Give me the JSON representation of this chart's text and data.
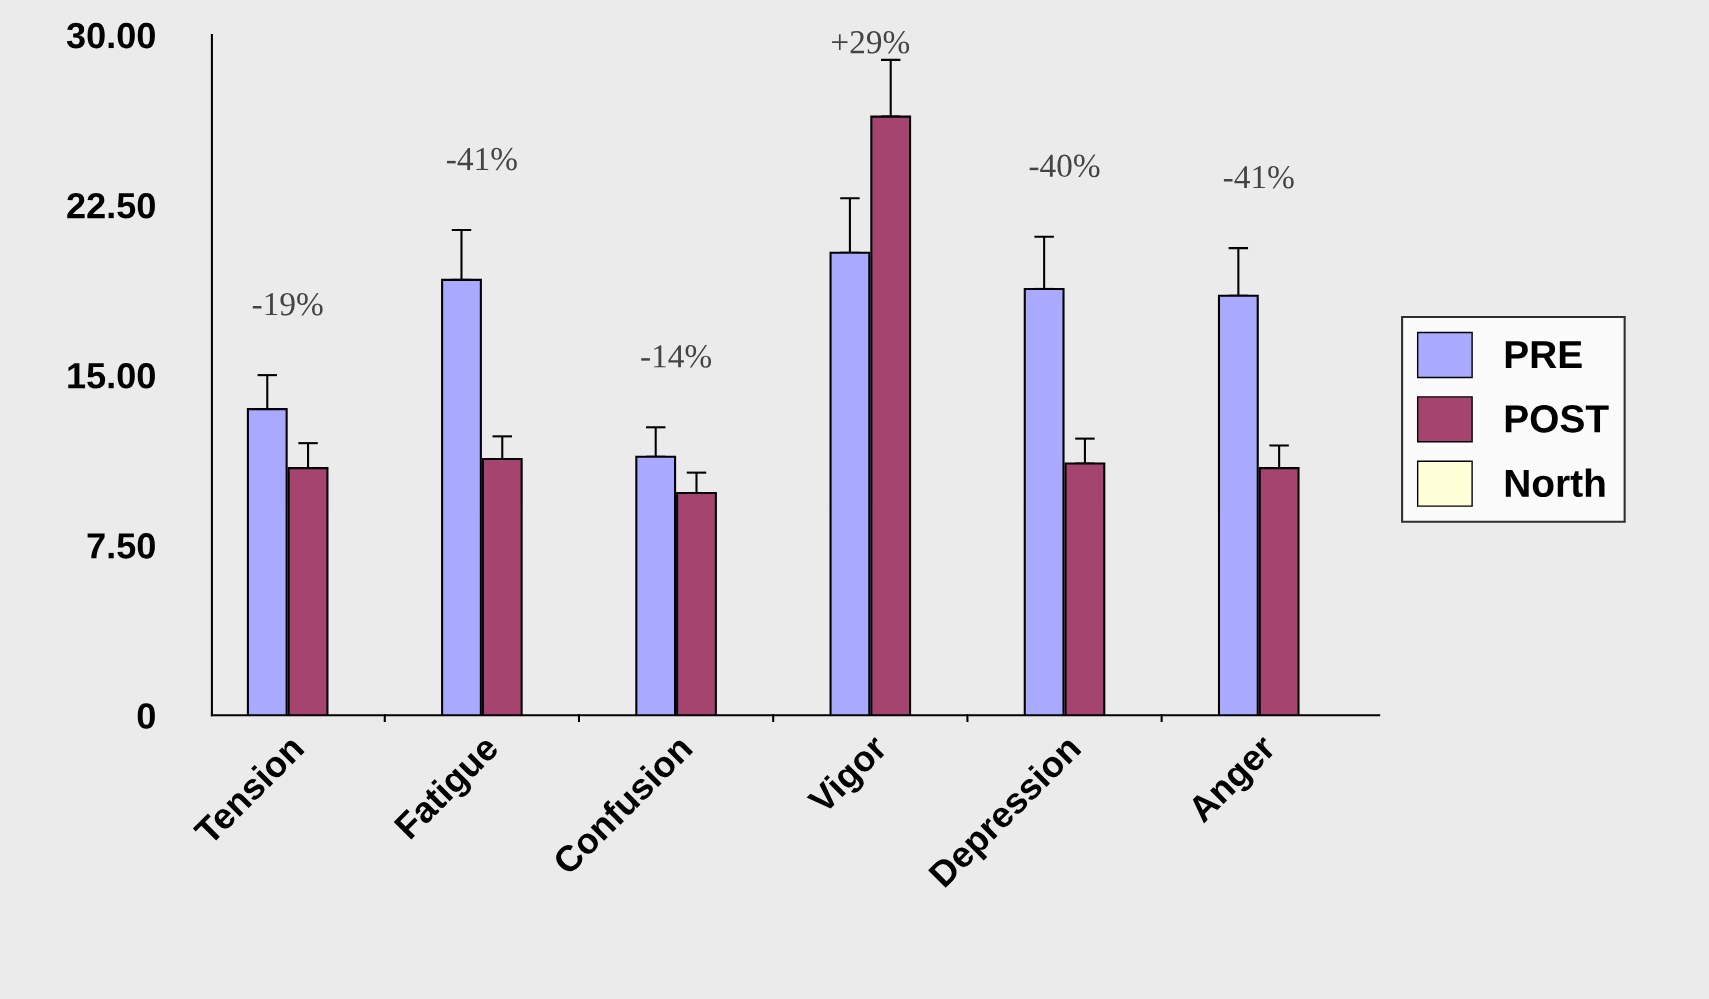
{
  "chart_data": {
    "type": "bar",
    "categories": [
      "Tension",
      "Fatigue",
      "Confusion",
      "Vigor",
      "Depression",
      "Anger"
    ],
    "series": [
      {
        "name": "PRE",
        "color": "#a9a9ff",
        "values": [
          13.5,
          19.2,
          11.4,
          20.4,
          18.8,
          18.5
        ],
        "errors": [
          [
            13.5,
            15.0
          ],
          [
            19.2,
            21.4
          ],
          [
            11.4,
            12.7
          ],
          [
            20.4,
            22.8
          ],
          [
            18.8,
            21.1
          ],
          [
            18.5,
            20.6
          ]
        ]
      },
      {
        "name": "POST",
        "color": "#a5446e",
        "values": [
          10.9,
          11.3,
          9.8,
          26.4,
          11.1,
          10.9
        ],
        "errors": [
          [
            10.9,
            12.0
          ],
          [
            11.3,
            12.3
          ],
          [
            9.8,
            10.7
          ],
          [
            26.4,
            28.9
          ],
          [
            11.1,
            12.2
          ],
          [
            10.9,
            11.9
          ]
        ]
      },
      {
        "name": "North",
        "color": "#ffffd8",
        "values": [
          null,
          null,
          null,
          null,
          null,
          null
        ]
      }
    ],
    "ylim": [
      0,
      30
    ],
    "yticks": [
      {
        "value": 0,
        "label": "0"
      },
      {
        "value": 7.5,
        "label": "7.50"
      },
      {
        "value": 15,
        "label": "15.00"
      },
      {
        "value": 22.5,
        "label": "22.50"
      },
      {
        "value": 30,
        "label": "30.00"
      }
    ],
    "annotations": [
      "-19%",
      "-41%",
      "-14%",
      "+29%",
      "-40%",
      "-41%"
    ],
    "grid": false,
    "legend": "right"
  }
}
